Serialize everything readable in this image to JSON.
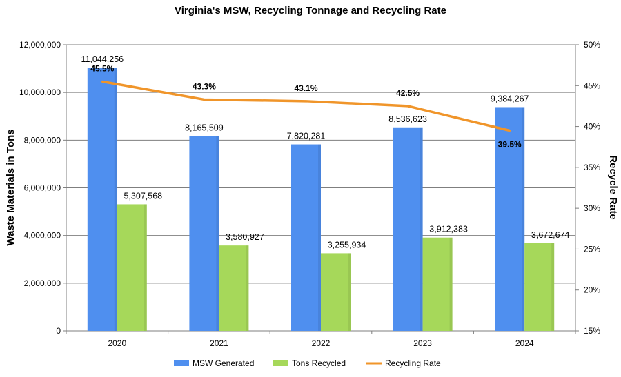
{
  "chart_data": {
    "type": "bar",
    "title": "Virginia's MSW, Recycling Tonnage and Recycling Rate",
    "ylabel": "Waste Materials in Tons",
    "y2label": "Recycle Rate",
    "categories": [
      "2020",
      "2021",
      "2022",
      "2023",
      "2024"
    ],
    "ylim": [
      0,
      12000000
    ],
    "yticks": [
      0,
      2000000,
      4000000,
      6000000,
      8000000,
      10000000,
      12000000
    ],
    "ytick_labels": [
      "0",
      "2,000,000",
      "4,000,000",
      "6,000,000",
      "8,000,000",
      "10,000,000",
      "12,000,000"
    ],
    "y2lim": [
      15,
      50
    ],
    "y2ticks": [
      15,
      20,
      25,
      30,
      35,
      40,
      45,
      50
    ],
    "y2tick_labels": [
      "15%",
      "20%",
      "25%",
      "30%",
      "35%",
      "40%",
      "45%",
      "50%"
    ],
    "grid": true,
    "legend_position": "bottom",
    "series": [
      {
        "name": "MSW Generated",
        "type": "bar",
        "axis": "left",
        "color": "#4F8FEF",
        "values": [
          11044256,
          8165509,
          7820281,
          8536623,
          9384267
        ],
        "labels": [
          "11,044,256",
          "8,165,509",
          "7,820,281",
          "8,536,623",
          "9,384,267"
        ]
      },
      {
        "name": "Tons Recycled",
        "type": "bar",
        "axis": "left",
        "color": "#A6D85A",
        "values": [
          5307568,
          3580927,
          3255934,
          3912383,
          3672674
        ],
        "labels": [
          "5,307,568",
          "3,580,927",
          "3,255,934",
          "3,912,383",
          "3,672,674"
        ]
      },
      {
        "name": "Recycling Rate",
        "type": "line",
        "axis": "right",
        "color": "#F0952A",
        "values": [
          45.5,
          43.3,
          43.1,
          42.5,
          39.5
        ],
        "labels": [
          "45.5%",
          "43.3%",
          "43.1%",
          "42.5%",
          "39.5%"
        ]
      }
    ]
  }
}
